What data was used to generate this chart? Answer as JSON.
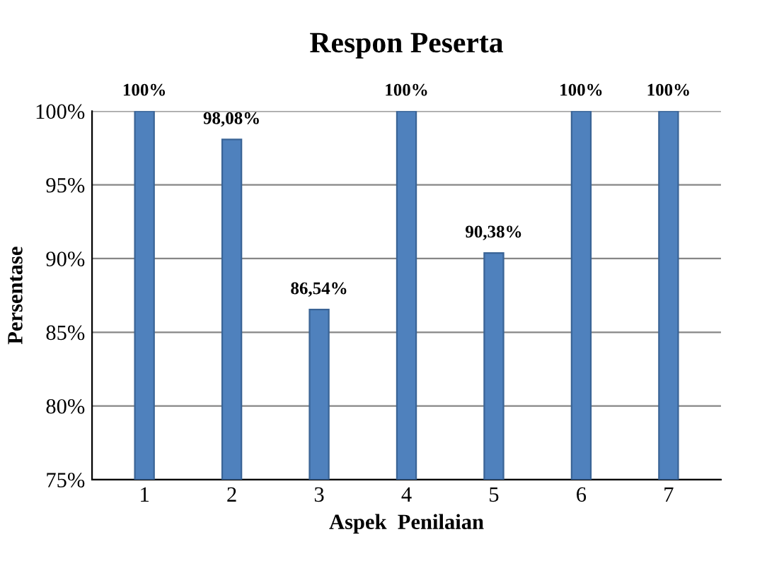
{
  "chart_data": {
    "type": "bar",
    "title": "Respon Peserta",
    "xlabel": "Aspek  Penilaian",
    "ylabel": "Persentase",
    "categories": [
      "1",
      "2",
      "3",
      "4",
      "5",
      "6",
      "7"
    ],
    "values": [
      100,
      98.08,
      86.54,
      100,
      90.38,
      100,
      100
    ],
    "value_labels": [
      "100%",
      "98,08%",
      "86,54%",
      "100%",
      "90,38%",
      "100%",
      "100%"
    ],
    "color": "#4f81bd",
    "ylim": [
      75,
      100
    ],
    "yticks": [
      {
        "value": 75,
        "label": "75%"
      },
      {
        "value": 80,
        "label": "80%"
      },
      {
        "value": 85,
        "label": "85%"
      },
      {
        "value": 90,
        "label": "90%"
      },
      {
        "value": 95,
        "label": "95%"
      },
      {
        "value": 100,
        "label": "100%"
      }
    ],
    "grid": "y",
    "legend": false
  }
}
